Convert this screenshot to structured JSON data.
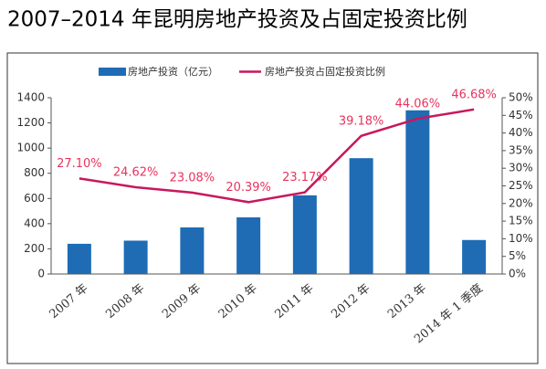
{
  "chart_data": {
    "type": "bar-line",
    "title": "2007–2014 年昆明房地产投资及占固定投资比例",
    "categories": [
      "2007 年",
      "2008 年",
      "2009 年",
      "2010 年",
      "2011 年",
      "2012 年",
      "2013 年",
      "2014 年 1 季度"
    ],
    "series": [
      {
        "name": "房地产投资（亿元）",
        "color": "#1f6cb5",
        "type": "bar",
        "values": [
          240,
          265,
          370,
          450,
          625,
          920,
          1300,
          270
        ]
      },
      {
        "name": "房地产投资占固定投资比例",
        "color": "#c8175d",
        "type": "line",
        "axis": "y2",
        "values": [
          27.1,
          24.62,
          23.08,
          20.39,
          23.17,
          39.18,
          44.06,
          46.68
        ],
        "value_labels": [
          "27.10%",
          "24.62%",
          "23.08%",
          "20.39%",
          "23.17%",
          "39.18%",
          "44.06%",
          "46.68%"
        ]
      }
    ],
    "ylim": [
      0,
      1400
    ],
    "yticks": [
      0,
      200,
      400,
      600,
      800,
      1000,
      1200,
      1400
    ],
    "y2lim": [
      0,
      50
    ],
    "y2ticks": [
      {
        "value": 0,
        "label": "0%"
      },
      {
        "value": 5,
        "label": "5%"
      },
      {
        "value": 10,
        "label": "10%"
      },
      {
        "value": 15,
        "label": "15%"
      },
      {
        "value": 20,
        "label": "20%"
      },
      {
        "value": 25,
        "label": "25%"
      },
      {
        "value": 30,
        "label": "30%"
      },
      {
        "value": 35,
        "label": "35%"
      },
      {
        "value": 40,
        "label": "40%"
      },
      {
        "value": 45,
        "label": "45%"
      },
      {
        "value": 50,
        "label": "50%"
      }
    ]
  }
}
